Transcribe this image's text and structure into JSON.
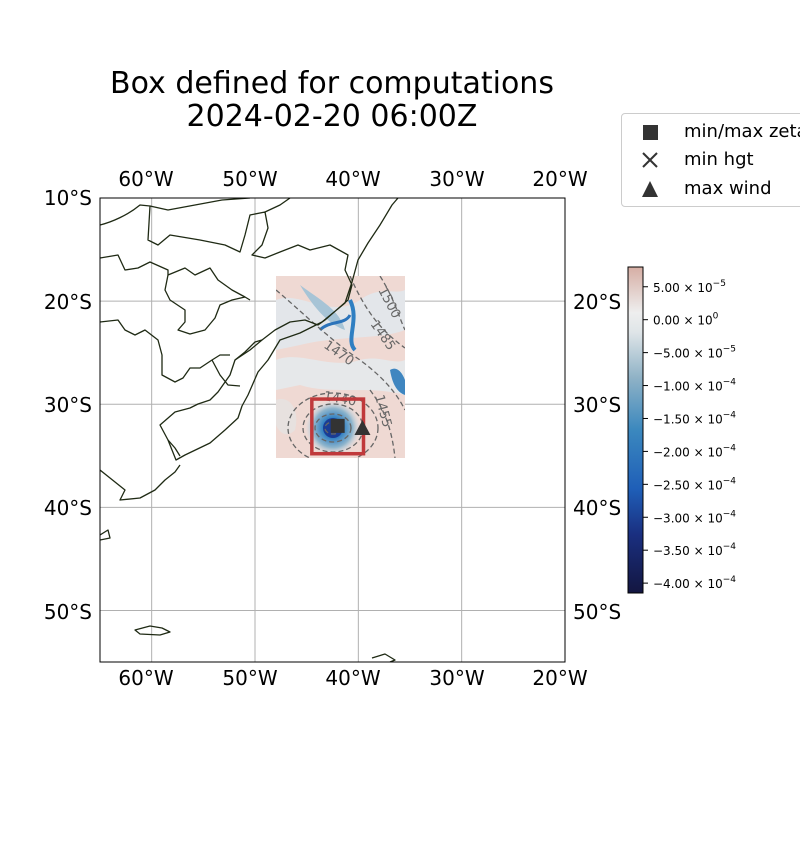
{
  "title": {
    "line1": "Box defined for computations",
    "line2": "2024-02-20 06:00Z"
  },
  "map": {
    "lon_range": [
      -65,
      -20
    ],
    "lat_range": [
      -55,
      -10
    ],
    "lon_labels": [
      "60°W",
      "50°W",
      "40°W",
      "30°W",
      "20°W"
    ],
    "lat_labels": [
      "10°S",
      "20°S",
      "30°S",
      "40°S",
      "50°S"
    ],
    "gridlines": true,
    "field_extent": {
      "lon": [
        -48,
        -35
      ],
      "lat": [
        -35,
        -17.5
      ]
    },
    "computation_box": {
      "lon": [
        -44.5,
        -39.5
      ],
      "lat": [
        -34.8,
        -29.5
      ],
      "color": "#c0393b"
    },
    "markers": {
      "min_max_zeta": {
        "lon": -42,
        "lat": -32.1
      },
      "max_wind": {
        "lon": -39.6,
        "lat": -32.3
      }
    },
    "contour_labels": [
      "1500",
      "1485",
      "1470",
      "1440",
      "1455"
    ]
  },
  "legend": {
    "items": [
      {
        "label": "min/max zeta",
        "marker": "square-icon"
      },
      {
        "label": "min hgt",
        "marker": "x-icon"
      },
      {
        "label": "max wind",
        "marker": "triangle-icon"
      }
    ]
  },
  "colorbar": {
    "ticks": [
      {
        "mantissa": "5.00",
        "exp": "−5",
        "value": 5e-05
      },
      {
        "mantissa": "0.00",
        "exp": "0",
        "value": 0
      },
      {
        "mantissa": "−5.00",
        "exp": "−5",
        "value": -5e-05
      },
      {
        "mantissa": "−1.00",
        "exp": "−4",
        "value": -0.0001
      },
      {
        "mantissa": "−1.50",
        "exp": "−4",
        "value": -0.00015
      },
      {
        "mantissa": "−2.00",
        "exp": "−4",
        "value": -0.0002
      },
      {
        "mantissa": "−2.50",
        "exp": "−4",
        "value": -0.00025
      },
      {
        "mantissa": "−3.00",
        "exp": "−4",
        "value": -0.0003
      },
      {
        "mantissa": "−3.50",
        "exp": "−4",
        "value": -0.00035
      },
      {
        "mantissa": "−4.00",
        "exp": "−4",
        "value": -0.0004
      }
    ],
    "range": [
      -0.000415,
      8e-05
    ],
    "colors": [
      "#131640",
      "#1f4aa8",
      "#2f7fc2",
      "#8fb5cc",
      "#eef0f0",
      "#d9b0a6"
    ]
  }
}
